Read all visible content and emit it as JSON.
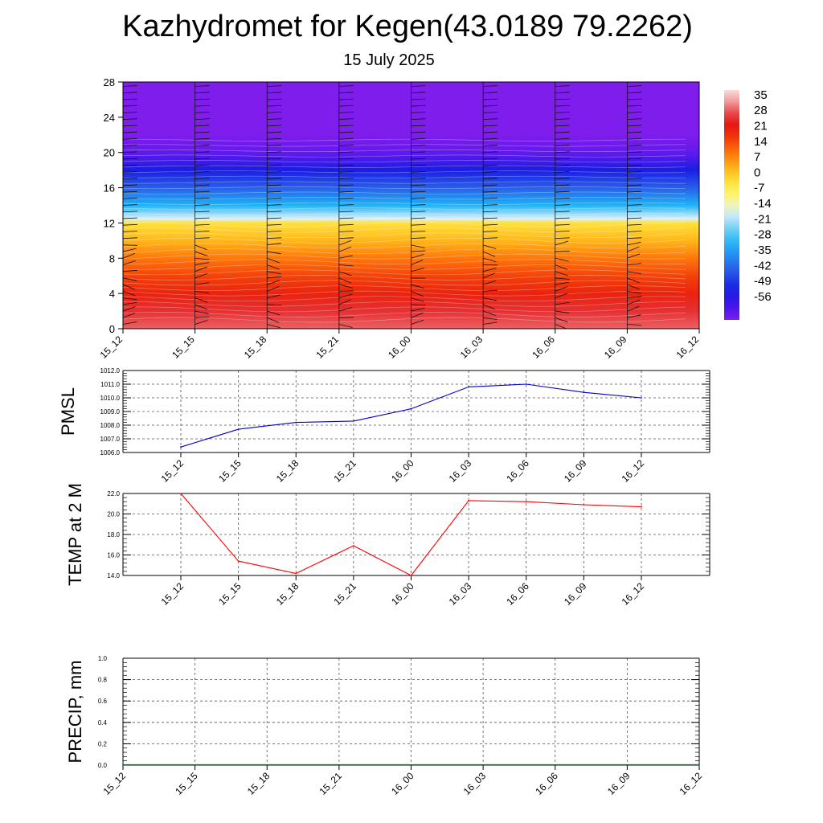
{
  "header": {
    "title": "Kazhydromet for Kegen(43.0189 79.2262)",
    "subtitle": "15 July 2025"
  },
  "chart_data": [
    {
      "type": "heatmap",
      "description_of_variable": "",
      "xlabel": "",
      "ylabel": "",
      "x_categories": [
        "15_12",
        "15_15",
        "15_18",
        "15_21",
        "16_00",
        "16_03",
        "16_06",
        "16_09",
        "16_12"
      ],
      "ylim": [
        0,
        28
      ],
      "y_ticks": [
        0,
        4,
        8,
        12,
        16,
        20,
        24,
        28
      ],
      "colorbar": {
        "labels": [
          35,
          28,
          21,
          14,
          7,
          0,
          -7,
          -14,
          -21,
          -28,
          -35,
          -42,
          -49,
          -56
        ],
        "range": [
          -63,
          42
        ]
      },
      "profile_levels": [
        0,
        2,
        4,
        6,
        8,
        10,
        12,
        12.5,
        14,
        16,
        18,
        20,
        22,
        28
      ],
      "profile_values": [
        33,
        30,
        24,
        19,
        13,
        6,
        0,
        -14,
        -28,
        -40,
        -50,
        -60,
        -63,
        -63
      ],
      "wind_barbs": true,
      "grid": false
    },
    {
      "type": "line",
      "ylabel": "PMSL",
      "x": [
        "15_12",
        "15_15",
        "15_18",
        "15_21",
        "16_00",
        "16_03",
        "16_06",
        "16_09",
        "16_12"
      ],
      "series": [
        {
          "values": [
            1006.4,
            1007.7,
            1008.2,
            1008.3,
            1009.2,
            1010.8,
            1011.0,
            1010.4,
            1010.0
          ],
          "color": "#0000cc"
        }
      ],
      "ylim": [
        1006.0,
        1012.0
      ],
      "y_ticks": [
        "1006.0",
        "1007.0",
        "1008.0",
        "1009.0",
        "1010.0",
        "1011.0",
        "1012.0"
      ],
      "grid": true
    },
    {
      "type": "line",
      "ylabel": "TEMP at 2 M",
      "x": [
        "15_12",
        "15_15",
        "15_18",
        "15_21",
        "16_00",
        "16_03",
        "16_06",
        "16_09",
        "16_12"
      ],
      "series": [
        {
          "values": [
            22.0,
            15.4,
            14.2,
            16.9,
            14.0,
            21.3,
            21.2,
            20.9,
            20.7
          ],
          "color": "#ff0000"
        }
      ],
      "ylim": [
        14.0,
        22.0
      ],
      "y_ticks": [
        "14.0",
        "16.0",
        "18.0",
        "20.0",
        "22.0"
      ],
      "grid": true
    },
    {
      "type": "line",
      "ylabel": "PRECIP, mm",
      "x": [
        "15_12",
        "15_15",
        "15_18",
        "15_21",
        "16_00",
        "16_03",
        "16_06",
        "16_09",
        "16_12"
      ],
      "series": [
        {
          "values": [
            0,
            0,
            0,
            0,
            0,
            0,
            0,
            0,
            0
          ],
          "color": "#008000"
        }
      ],
      "ylim": [
        0.0,
        1.0
      ],
      "y_ticks": [
        "0.0",
        "0.2",
        "0.4",
        "0.6",
        "0.8",
        "1.0"
      ],
      "grid": true
    }
  ],
  "colors": {
    "pmsl_line": "#0000cc",
    "temp_line": "#ff0000",
    "precip_line": "#008000",
    "grid": "#555555"
  }
}
